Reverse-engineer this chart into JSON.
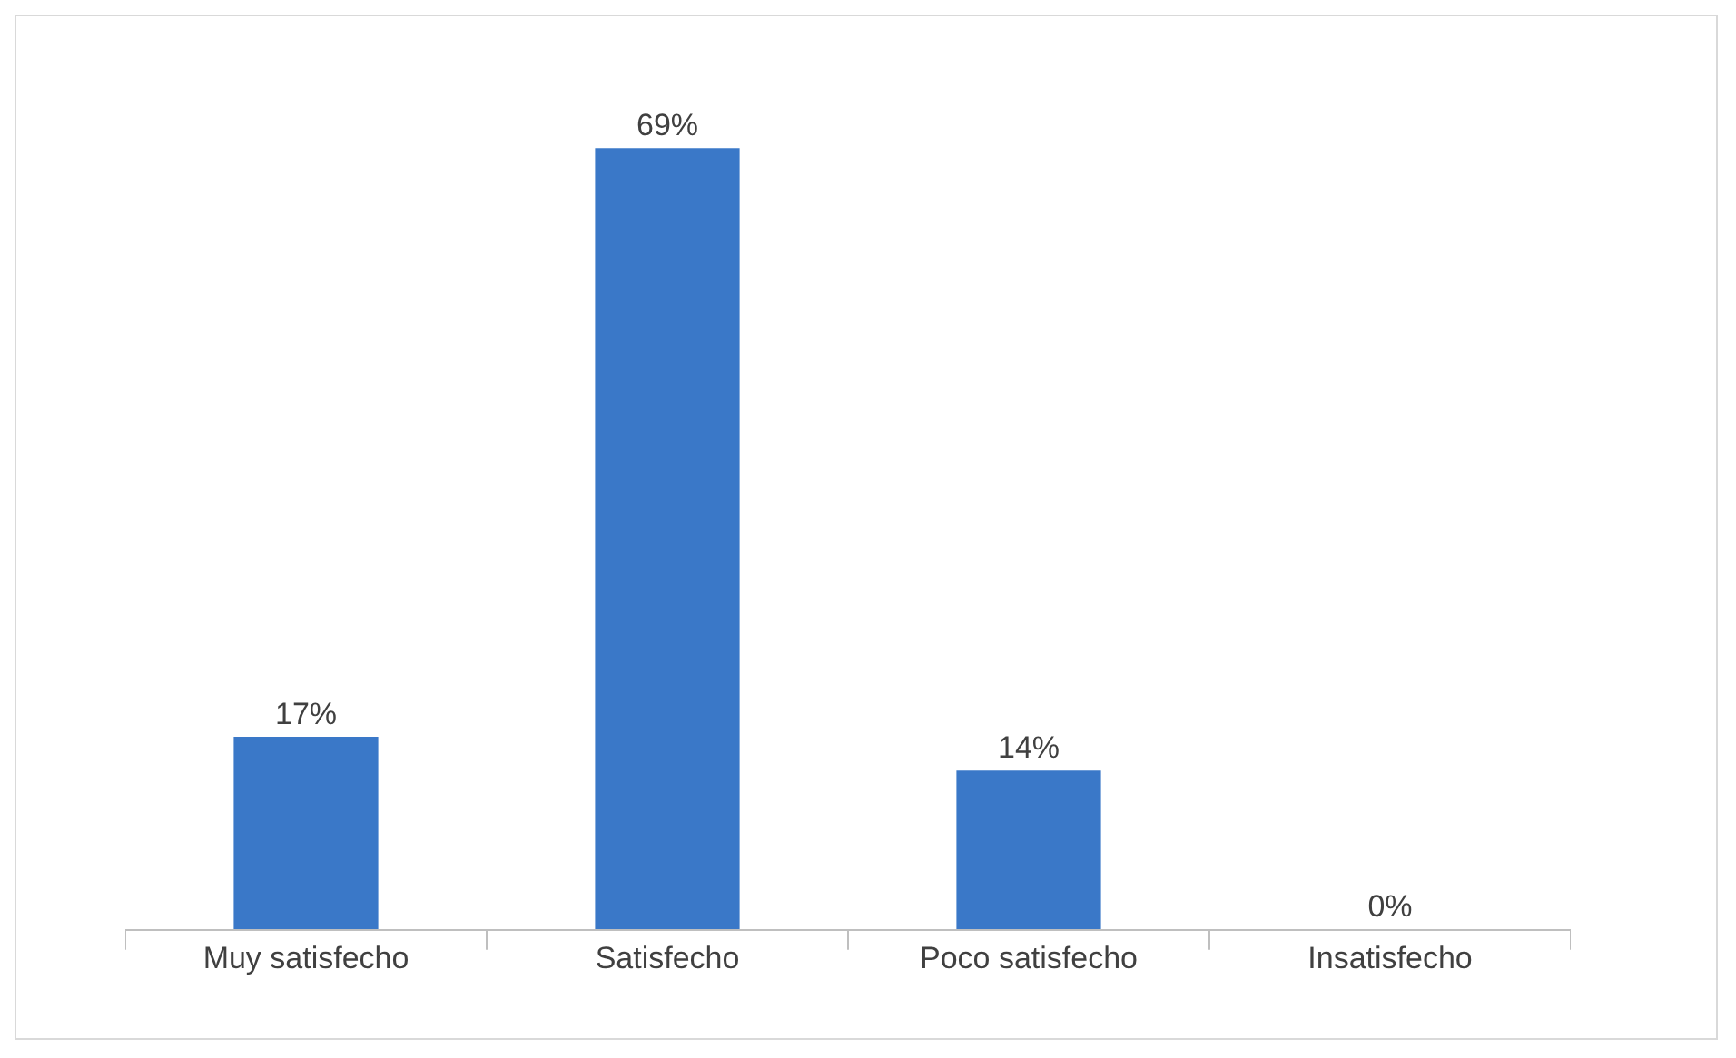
{
  "chart_data": {
    "type": "bar",
    "categories": [
      "Muy satisfecho",
      "Satisfecho",
      "Poco satisfecho",
      "Insatisfecho"
    ],
    "values": [
      17,
      69,
      14,
      0
    ],
    "color": "#3a78c8",
    "value_labels": [
      "17%",
      "69%",
      "14%",
      "0%"
    ]
  }
}
